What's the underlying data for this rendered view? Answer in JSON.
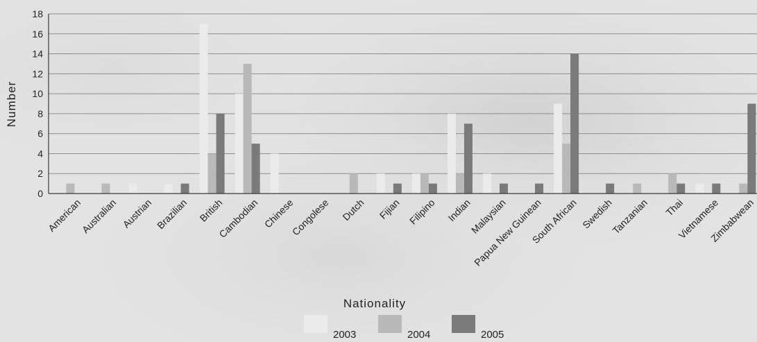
{
  "chart_data": {
    "type": "bar",
    "title": "",
    "xlabel": "Nationality",
    "ylabel": "Number",
    "ylim": [
      0,
      18
    ],
    "yticks": [
      0,
      2,
      4,
      6,
      8,
      10,
      12,
      14,
      16,
      18
    ],
    "grid": true,
    "legend_position": "bottom",
    "categories": [
      "American",
      "Australian",
      "Austrian",
      "Brazilian",
      "British",
      "Cambodian",
      "Chinese",
      "Congolese",
      "Dutch",
      "Fijian",
      "Filipino",
      "Indian",
      "Malaysian",
      "Papua New Guinean",
      "South African",
      "Swedish",
      "Tanzanian",
      "Thai",
      "Vietnamese",
      "Zimbabwean"
    ],
    "series": [
      {
        "name": "2003",
        "color": "#ebebeb",
        "values": [
          0,
          0,
          1,
          1,
          17,
          10,
          4,
          0,
          0,
          2,
          2,
          8,
          2,
          0,
          9,
          0,
          0,
          0,
          1,
          0
        ]
      },
      {
        "name": "2004",
        "color": "#b9b9b9",
        "values": [
          1,
          1,
          0,
          0,
          4,
          13,
          0,
          0,
          2,
          0,
          2,
          2,
          0,
          0,
          5,
          0,
          1,
          2,
          0,
          1
        ]
      },
      {
        "name": "2005",
        "color": "#7a7a7a",
        "values": [
          0,
          0,
          0,
          1,
          8,
          5,
          0,
          0,
          0,
          1,
          1,
          7,
          1,
          1,
          14,
          1,
          0,
          1,
          1,
          9
        ]
      }
    ]
  }
}
